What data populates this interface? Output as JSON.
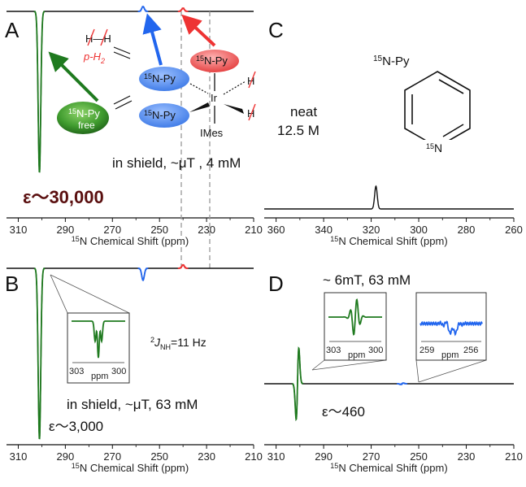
{
  "colors": {
    "green": "#1f7a1f",
    "blue": "#2266ee",
    "red": "#ee3333",
    "dark_red": "#5a0f0f",
    "axis": "#111111"
  },
  "panels": {
    "A": {
      "letter": "A",
      "species": {
        "free": "N-Py",
        "free_sup": "15",
        "free_sub": "free",
        "bound": "N-Py",
        "bound_sup": "15",
        "ph2": "p-H",
        "ph2_sub": "2",
        "h2_label": "H—H",
        "ir": "Ir",
        "imes": "IMes",
        "h": "H"
      },
      "condition": "in shield, ~μT , 4 mM",
      "enhancement": "ε～30,000"
    },
    "B": {
      "letter": "B",
      "coupling": "J",
      "coupling_sup": "2",
      "coupling_sub": "NH",
      "coupling_value": "=11 Hz",
      "condition": "in shield, ~μT, 63 mM",
      "enhancement": "ε～3,000",
      "inset_ticks": [
        "303",
        "ppm",
        "300"
      ]
    },
    "C": {
      "letter": "C",
      "title": "N-Py",
      "title_sup": "15",
      "neat": "neat",
      "conc": "12.5 M",
      "ring_n": "N",
      "ring_n_sup": "15"
    },
    "D": {
      "letter": "D",
      "condition": "~ 6mT,  63 mM",
      "enhancement": "ε～460",
      "inset1_ticks": [
        "303",
        "ppm",
        "300"
      ],
      "inset2_ticks": [
        "259",
        "ppm",
        "256"
      ]
    }
  },
  "chart_data": [
    {
      "panel": "A",
      "type": "line",
      "xlabel": "N Chemical Shift (ppm)",
      "xlabel_sup": "15",
      "xlim": [
        315,
        210
      ],
      "xticks": [
        310,
        290,
        270,
        250,
        230,
        210
      ],
      "series": [
        {
          "color_key": "green",
          "peak_ppm": 301,
          "amplitude": -1.0,
          "direction": "negative"
        },
        {
          "color_key": "blue",
          "peak_ppm": 257,
          "amplitude": 0.03,
          "direction": "positive"
        },
        {
          "color_key": "red",
          "peak_ppm": 240,
          "amplitude": 0.02,
          "direction": "positive"
        }
      ]
    },
    {
      "panel": "B",
      "type": "line",
      "xlabel": "N Chemical Shift (ppm)",
      "xlabel_sup": "15",
      "xlim": [
        315,
        210
      ],
      "xticks": [
        310,
        290,
        270,
        250,
        230,
        210
      ],
      "series": [
        {
          "color_key": "green",
          "peak_ppm": 301,
          "amplitude": -1.0,
          "direction": "negative"
        },
        {
          "color_key": "blue",
          "peak_ppm": 257,
          "amplitude": -0.07,
          "direction": "negative"
        },
        {
          "color_key": "red",
          "peak_ppm": 240,
          "amplitude": 0.02,
          "direction": "positive"
        }
      ]
    },
    {
      "panel": "C",
      "type": "line",
      "xlabel": "N Chemical Shift (ppm)",
      "xlabel_sup": "15",
      "xlim": [
        365,
        260
      ],
      "xticks": [
        360,
        340,
        320,
        300,
        280,
        260
      ],
      "series": [
        {
          "color_key": "axis",
          "peak_ppm": 318,
          "amplitude": 1.0,
          "direction": "positive"
        }
      ]
    },
    {
      "panel": "D",
      "type": "line",
      "xlabel": "N Chemical Shift (ppm)",
      "xlabel_sup": "15",
      "xlim": [
        315,
        210
      ],
      "xticks": [
        310,
        290,
        270,
        250,
        230,
        210
      ],
      "series": [
        {
          "color_key": "green",
          "peak_ppm": 301,
          "amplitude": 1.0,
          "direction": "antiphase"
        },
        {
          "color_key": "blue",
          "peak_ppm": 257,
          "amplitude": 0.02,
          "direction": "antiphase"
        }
      ]
    }
  ]
}
